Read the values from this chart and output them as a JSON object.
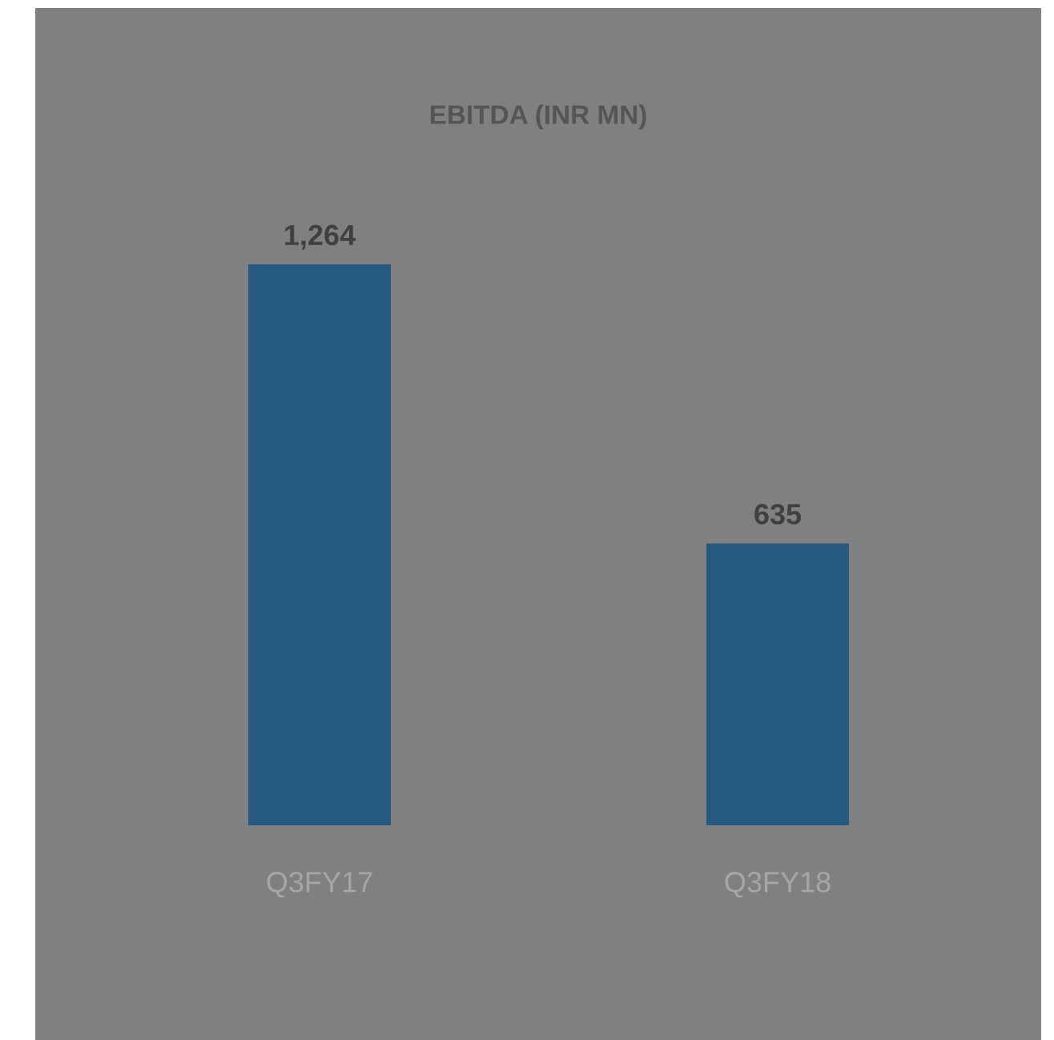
{
  "chart_data": {
    "type": "bar",
    "title": "EBITDA (INR MN)",
    "categories": [
      "Q3FY17",
      "Q3FY18"
    ],
    "values": [
      1264,
      635
    ],
    "value_labels": [
      "1,264",
      "635"
    ],
    "color": "#275a80"
  }
}
